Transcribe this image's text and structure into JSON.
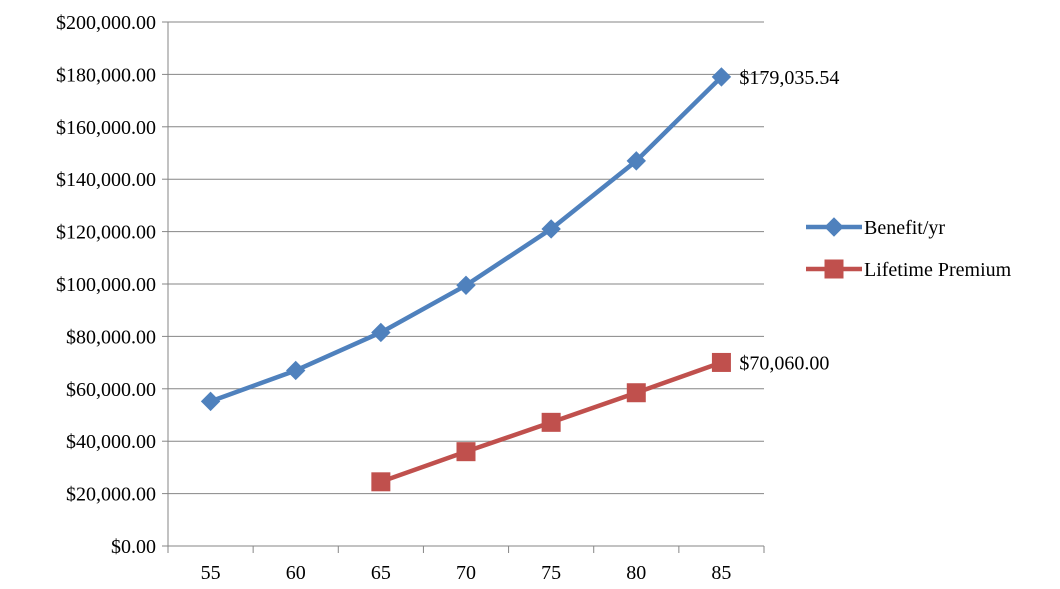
{
  "chart_data": {
    "type": "line",
    "title": "",
    "xlabel": "",
    "ylabel": "",
    "categories": [
      "55",
      "60",
      "65",
      "70",
      "75",
      "80",
      "85"
    ],
    "ylim": [
      0,
      200000
    ],
    "yticks": [
      0,
      20000,
      40000,
      60000,
      80000,
      100000,
      120000,
      140000,
      160000,
      180000,
      200000
    ],
    "ytick_labels": [
      "$0.00",
      "$20,000.00",
      "$40,000.00",
      "$60,000.00",
      "$80,000.00",
      "$100,000.00",
      "$120,000.00",
      "$140,000.00",
      "$160,000.00",
      "$180,000.00",
      "$200,000.00"
    ],
    "grid": true,
    "legend_position": "right",
    "series": [
      {
        "name": "Benefit/yr",
        "color": "#4F81BD",
        "marker": "diamond",
        "values": [
          55200,
          67000,
          81500,
          99500,
          121000,
          147000,
          179035.54
        ],
        "end_label": "$179,035.54"
      },
      {
        "name": "Lifetime Premium",
        "color": "#C0504D",
        "marker": "square",
        "values": [
          null,
          null,
          24500,
          36000,
          47200,
          58500,
          70060.0
        ],
        "end_label": "$70,060.00"
      }
    ]
  }
}
